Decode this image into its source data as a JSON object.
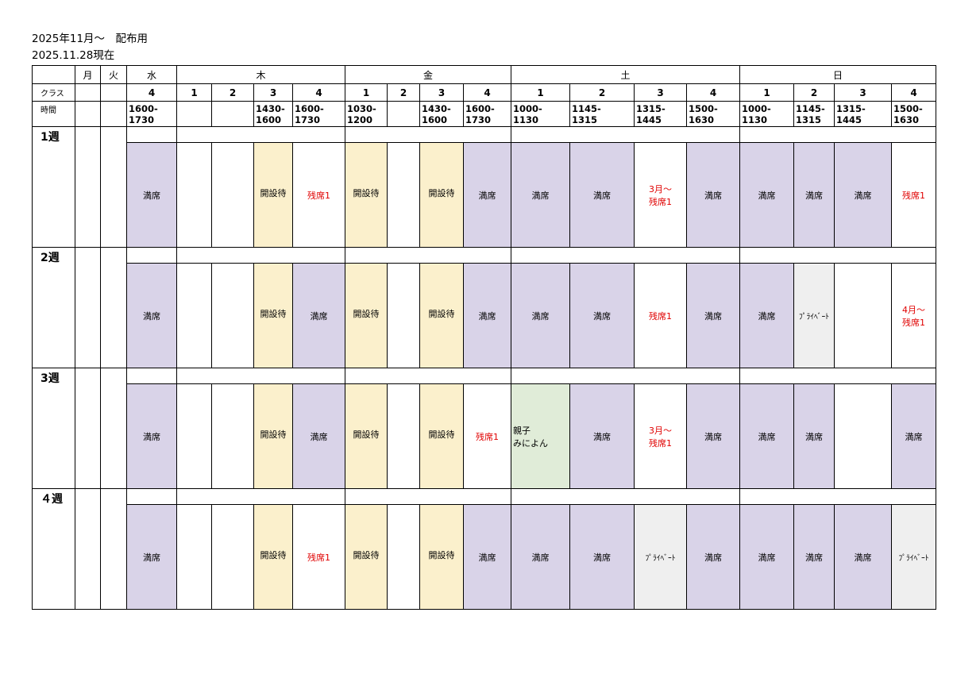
{
  "title": "2025年11月～　配布用",
  "subtitle": "2025.11.28現在",
  "days": [
    "月",
    "火",
    "水",
    "木",
    "金",
    "土",
    "日"
  ],
  "class_label": "クラス",
  "time_label": "時間",
  "class_numbers": [
    "4",
    "1",
    "2",
    "3",
    "4",
    "1",
    "2",
    "3",
    "4",
    "1",
    "2",
    "3",
    "4",
    "1",
    "2",
    "3",
    "4"
  ],
  "times": [
    [
      "1600-",
      "1730"
    ],
    [
      "",
      ""
    ],
    [
      "",
      ""
    ],
    [
      "1430-",
      "1600"
    ],
    [
      "1600-",
      "1730"
    ],
    [
      "1030-",
      "1200"
    ],
    [
      "",
      ""
    ],
    [
      "1430-",
      "1600"
    ],
    [
      "1600-",
      "1730"
    ],
    [
      "1000-",
      "1130"
    ],
    [
      "1145-",
      "1315"
    ],
    [
      "1315-",
      "1445"
    ],
    [
      "1500-",
      "1630"
    ],
    [
      "1000-",
      "1130"
    ],
    [
      "1145-",
      "1315"
    ],
    [
      "1315-",
      "1445"
    ],
    [
      "1500-",
      "1630"
    ]
  ],
  "weeks": [
    {
      "label": "1週",
      "cells": [
        {
          "lines": [
            "満席"
          ],
          "color": "#d9d3e8"
        },
        {
          "lines": [],
          "color": "#ffffff"
        },
        {
          "lines": [],
          "color": "#ffffff"
        },
        {
          "lines": [
            "開設待"
          ],
          "color": "#fbf0cc"
        },
        {
          "lines": [
            "残席1"
          ],
          "color": "#ffffff"
        },
        {
          "lines": [
            "開設待"
          ],
          "color": "#fbf0cc"
        },
        {
          "lines": [],
          "color": "#ffffff"
        },
        {
          "lines": [
            "開設待"
          ],
          "color": "#fbf0cc"
        },
        {
          "lines": [
            "満席"
          ],
          "color": "#d9d3e8"
        },
        {
          "lines": [
            "満席"
          ],
          "color": "#d9d3e8"
        },
        {
          "lines": [
            "満席"
          ],
          "color": "#d9d3e8"
        },
        {
          "lines": [
            "3月～",
            "残席1"
          ],
          "color": "#ffffff"
        },
        {
          "lines": [
            "満席"
          ],
          "color": "#d9d3e8"
        },
        {
          "lines": [
            "満席"
          ],
          "color": "#d9d3e8"
        },
        {
          "lines": [
            "満席"
          ],
          "color": "#d9d3e8"
        },
        {
          "lines": [
            "満席"
          ],
          "color": "#d9d3e8"
        },
        {
          "lines": [
            "残席1"
          ],
          "color": "#ffffff"
        }
      ]
    },
    {
      "label": "2週",
      "cells": [
        {
          "lines": [
            "満席"
          ],
          "color": "#d9d3e8"
        },
        {
          "lines": [],
          "color": "#ffffff"
        },
        {
          "lines": [],
          "color": "#ffffff"
        },
        {
          "lines": [
            "開設待"
          ],
          "color": "#fbf0cc"
        },
        {
          "lines": [
            "満席"
          ],
          "color": "#d9d3e8"
        },
        {
          "lines": [
            "開設待"
          ],
          "color": "#fbf0cc"
        },
        {
          "lines": [],
          "color": "#ffffff"
        },
        {
          "lines": [
            "開設待"
          ],
          "color": "#fbf0cc"
        },
        {
          "lines": [
            "満席"
          ],
          "color": "#d9d3e8"
        },
        {
          "lines": [
            "満席"
          ],
          "color": "#d9d3e8"
        },
        {
          "lines": [
            "満席"
          ],
          "color": "#d9d3e8"
        },
        {
          "lines": [
            "残席1"
          ],
          "color": "#ffffff"
        },
        {
          "lines": [
            "満席"
          ],
          "color": "#d9d3e8"
        },
        {
          "lines": [
            "満席"
          ],
          "color": "#d9d3e8"
        },
        {
          "lines": [
            "ﾌﾟﾗｲﾍﾞｰﾄ"
          ],
          "color": "#efefef"
        },
        {
          "lines": [],
          "color": "#ffffff"
        },
        {
          "lines": [
            "4月～",
            "残席1"
          ],
          "color": "#ffffff"
        }
      ]
    },
    {
      "label": "3週",
      "cells": [
        {
          "lines": [
            "満席"
          ],
          "color": "#d9d3e8"
        },
        {
          "lines": [],
          "color": "#ffffff"
        },
        {
          "lines": [],
          "color": "#ffffff"
        },
        {
          "lines": [
            "開設待"
          ],
          "color": "#fbf0cc"
        },
        {
          "lines": [
            "満席"
          ],
          "color": "#d9d3e8"
        },
        {
          "lines": [
            "開設待"
          ],
          "color": "#fbf0cc"
        },
        {
          "lines": [],
          "color": "#ffffff"
        },
        {
          "lines": [
            "開設待"
          ],
          "color": "#fbf0cc"
        },
        {
          "lines": [
            "残席1"
          ],
          "color": "#ffffff"
        },
        {
          "lines": [
            "親子",
            "みによん"
          ],
          "color": "#e0ecd8"
        },
        {
          "lines": [
            "満席"
          ],
          "color": "#d9d3e8"
        },
        {
          "lines": [
            "3月～",
            "残席1"
          ],
          "color": "#ffffff"
        },
        {
          "lines": [
            "満席"
          ],
          "color": "#d9d3e8"
        },
        {
          "lines": [
            "満席"
          ],
          "color": "#d9d3e8"
        },
        {
          "lines": [
            "満席"
          ],
          "color": "#d9d3e8"
        },
        {
          "lines": [],
          "color": "#ffffff"
        },
        {
          "lines": [
            "満席"
          ],
          "color": "#d9d3e8"
        }
      ]
    },
    {
      "label": "４週",
      "cells": [
        {
          "lines": [
            "満席"
          ],
          "color": "#d9d3e8"
        },
        {
          "lines": [],
          "color": "#ffffff"
        },
        {
          "lines": [],
          "color": "#ffffff"
        },
        {
          "lines": [
            "開設待"
          ],
          "color": "#fbf0cc"
        },
        {
          "lines": [
            "残席1"
          ],
          "color": "#ffffff"
        },
        {
          "lines": [
            "開設待"
          ],
          "color": "#fbf0cc"
        },
        {
          "lines": [],
          "color": "#ffffff"
        },
        {
          "lines": [
            "開設待"
          ],
          "color": "#fbf0cc"
        },
        {
          "lines": [
            "満席"
          ],
          "color": "#d9d3e8"
        },
        {
          "lines": [
            "満席"
          ],
          "color": "#d9d3e8"
        },
        {
          "lines": [
            "満席"
          ],
          "color": "#d9d3e8"
        },
        {
          "lines": [
            "ﾌﾟﾗｲﾍﾞｰﾄ"
          ],
          "color": "#efefef"
        },
        {
          "lines": [
            "満席"
          ],
          "color": "#d9d3e8"
        },
        {
          "lines": [
            "満席"
          ],
          "color": "#d9d3e8"
        },
        {
          "lines": [
            "満席"
          ],
          "color": "#d9d3e8"
        },
        {
          "lines": [
            "満席"
          ],
          "color": "#d9d3e8"
        },
        {
          "lines": [
            "ﾌﾟﾗｲﾍﾞｰﾄ"
          ],
          "color": "#efefef"
        }
      ]
    }
  ],
  "status_colors": {
    "full": "#d9d3e8",
    "pending": "#fbf0cc",
    "family": "#e0ecd8",
    "private": "#efefef",
    "remaining_text": "#e00000"
  }
}
